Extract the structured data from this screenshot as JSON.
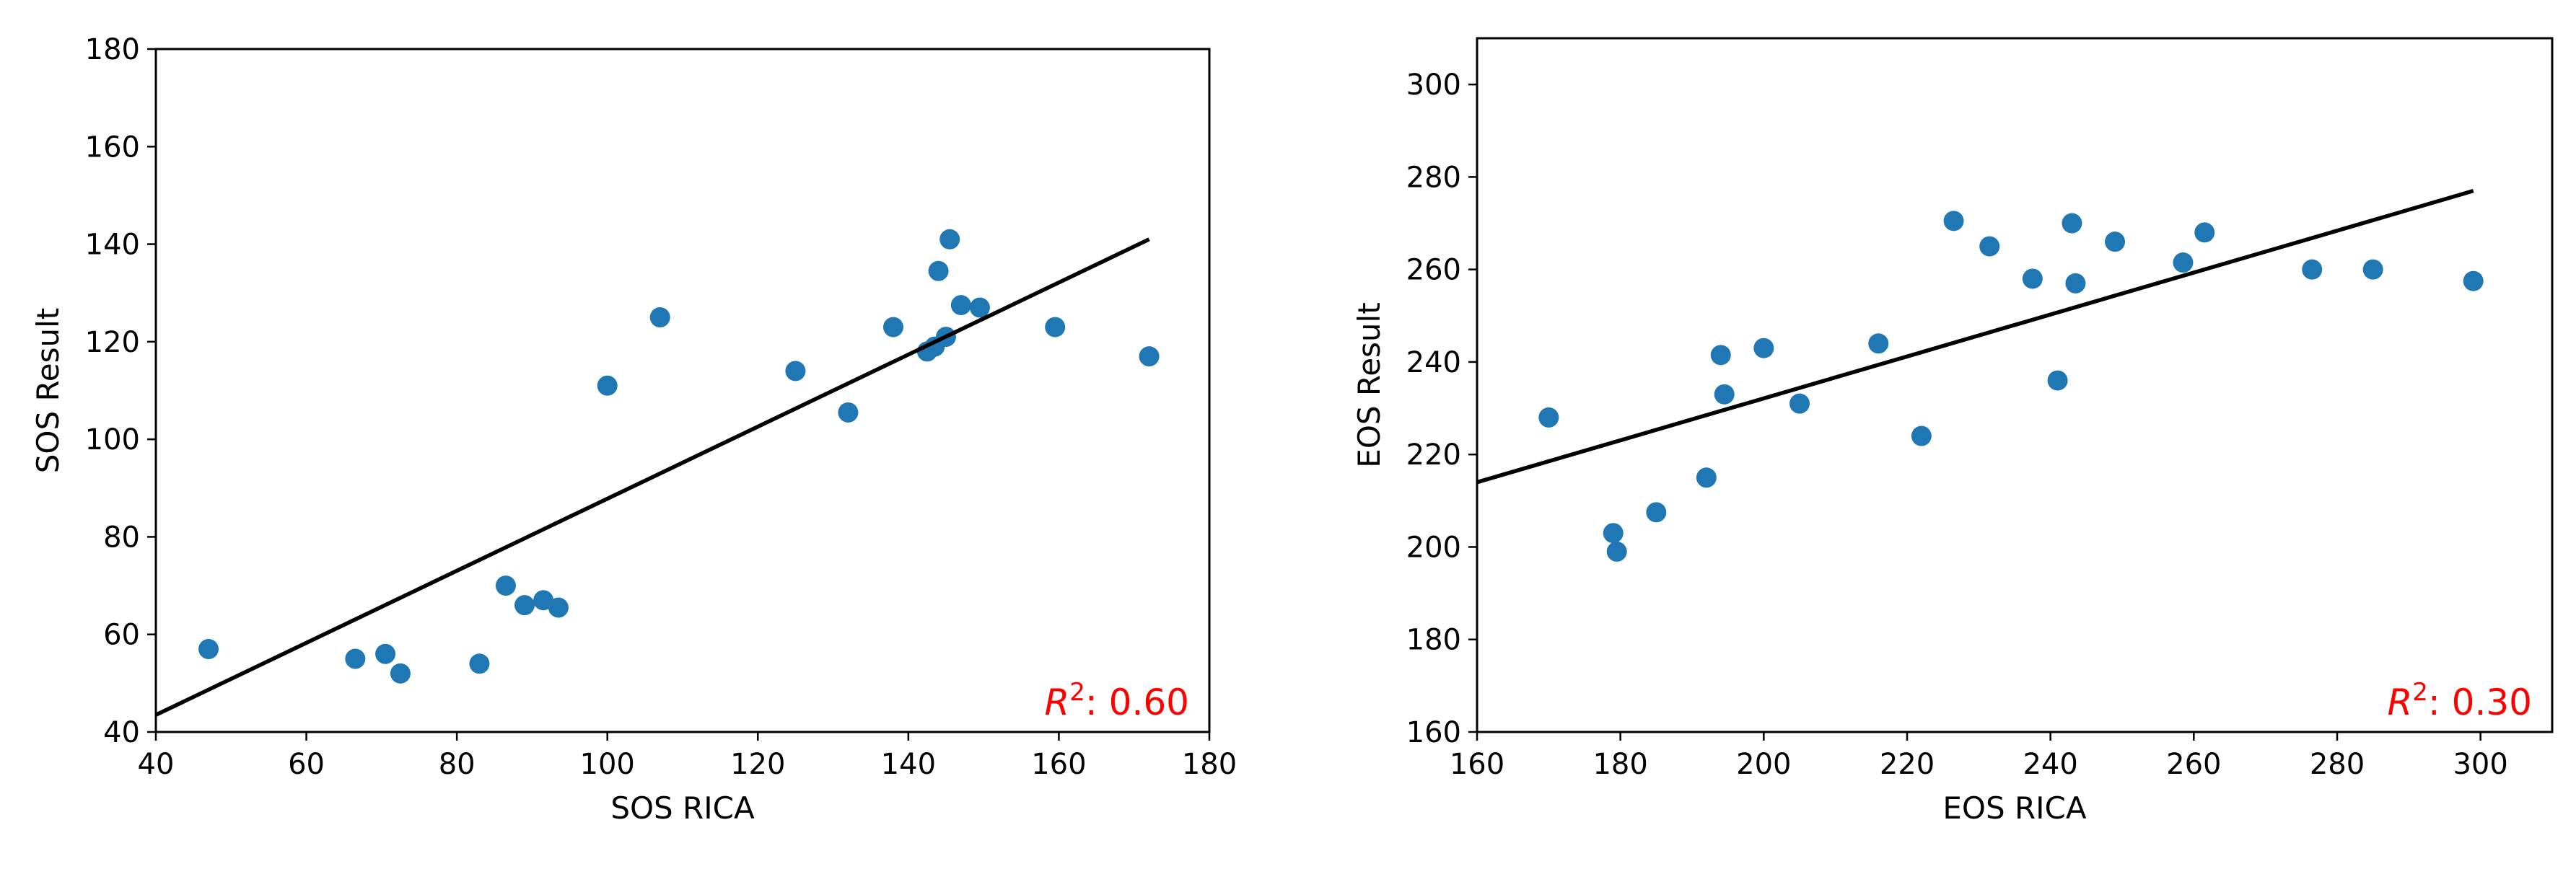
{
  "style": {
    "point_color": "#1f77b4",
    "line_color": "#000000",
    "annotation_color": "#ff0000"
  },
  "chart_data": [
    {
      "type": "scatter",
      "title": "",
      "xlabel": "SOS RICA",
      "ylabel": "SOS Result",
      "xlim": [
        40,
        180
      ],
      "ylim": [
        40,
        180
      ],
      "xticks": [
        40,
        60,
        80,
        100,
        120,
        140,
        160,
        180
      ],
      "yticks": [
        40,
        60,
        80,
        100,
        120,
        140,
        160,
        180
      ],
      "grid": false,
      "points": [
        {
          "x": 47,
          "y": 57
        },
        {
          "x": 66.5,
          "y": 55
        },
        {
          "x": 70.5,
          "y": 56
        },
        {
          "x": 72.5,
          "y": 52
        },
        {
          "x": 83,
          "y": 54
        },
        {
          "x": 86.5,
          "y": 70
        },
        {
          "x": 89,
          "y": 66
        },
        {
          "x": 91.5,
          "y": 67
        },
        {
          "x": 93.5,
          "y": 65.5
        },
        {
          "x": 100,
          "y": 111
        },
        {
          "x": 107,
          "y": 125
        },
        {
          "x": 125,
          "y": 114
        },
        {
          "x": 132,
          "y": 105.5
        },
        {
          "x": 138,
          "y": 123
        },
        {
          "x": 142.5,
          "y": 118
        },
        {
          "x": 143.5,
          "y": 119
        },
        {
          "x": 144,
          "y": 134.5
        },
        {
          "x": 145,
          "y": 121
        },
        {
          "x": 145.5,
          "y": 141
        },
        {
          "x": 147,
          "y": 127.5
        },
        {
          "x": 149.5,
          "y": 127
        },
        {
          "x": 159.5,
          "y": 123
        },
        {
          "x": 172,
          "y": 117
        }
      ],
      "fit_line": {
        "x": [
          40,
          172
        ],
        "y": [
          43.5,
          141
        ]
      },
      "annotation": {
        "symbol": "R",
        "exponent": "2",
        "text": ": 0.60"
      }
    },
    {
      "type": "scatter",
      "title": "",
      "xlabel": "EOS RICA",
      "ylabel": "EOS Result",
      "xlim": [
        160,
        310
      ],
      "ylim": [
        160,
        310
      ],
      "xticks": [
        160,
        180,
        200,
        220,
        240,
        260,
        280,
        300
      ],
      "yticks": [
        160,
        180,
        200,
        220,
        240,
        260,
        280,
        300
      ],
      "grid": false,
      "points": [
        {
          "x": 170,
          "y": 228
        },
        {
          "x": 179,
          "y": 203
        },
        {
          "x": 179.5,
          "y": 199
        },
        {
          "x": 185,
          "y": 207.5
        },
        {
          "x": 192,
          "y": 215
        },
        {
          "x": 194,
          "y": 241.5
        },
        {
          "x": 194.5,
          "y": 233
        },
        {
          "x": 200,
          "y": 243
        },
        {
          "x": 205,
          "y": 231
        },
        {
          "x": 216,
          "y": 244
        },
        {
          "x": 222,
          "y": 224
        },
        {
          "x": 226.5,
          "y": 270.5
        },
        {
          "x": 231.5,
          "y": 265
        },
        {
          "x": 237.5,
          "y": 258
        },
        {
          "x": 241,
          "y": 236
        },
        {
          "x": 243,
          "y": 270
        },
        {
          "x": 243.5,
          "y": 257
        },
        {
          "x": 249,
          "y": 266
        },
        {
          "x": 258.5,
          "y": 261.5
        },
        {
          "x": 261.5,
          "y": 268
        },
        {
          "x": 276.5,
          "y": 260
        },
        {
          "x": 285,
          "y": 260
        },
        {
          "x": 299,
          "y": 257.5
        }
      ],
      "fit_line": {
        "x": [
          160,
          299
        ],
        "y": [
          214,
          277
        ]
      },
      "annotation": {
        "symbol": "R",
        "exponent": "2",
        "text": ": 0.30"
      }
    }
  ]
}
